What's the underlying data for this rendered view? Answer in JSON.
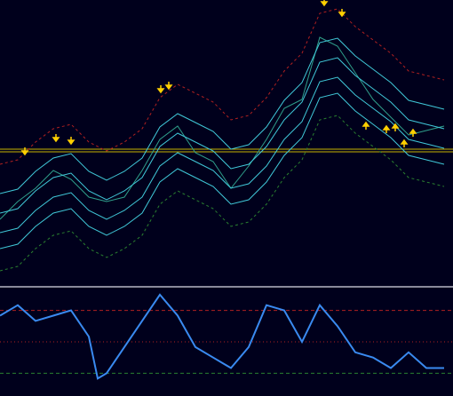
{
  "chart_data": [
    {
      "type": "line",
      "x": [
        0,
        20,
        40,
        60,
        80,
        100,
        120,
        140,
        160,
        180,
        200,
        220,
        240,
        260,
        280,
        300,
        320,
        340,
        360,
        380,
        400,
        420,
        440,
        460,
        480,
        500
      ],
      "xlim": [
        0,
        510
      ],
      "ylim": [
        0,
        322
      ],
      "hlines": [
        {
          "value": 154,
          "color": "#c8b400"
        },
        {
          "value": 151,
          "color": "#c8b400"
        }
      ],
      "series": [
        {
          "color": "#2fa08c",
          "dash": false,
          "width": 1,
          "values": [
            75,
            95,
            110,
            130,
            120,
            100,
            95,
            100,
            130,
            165,
            180,
            150,
            140,
            110,
            135,
            165,
            200,
            210,
            280,
            270,
            240,
            210,
            190,
            170,
            175,
            180
          ]
        },
        {
          "color": "#b02020",
          "dash": true,
          "width": 1,
          "values": [
            137,
            142,
            162,
            177,
            182,
            162,
            152,
            162,
            177,
            212,
            227,
            217,
            207,
            187,
            192,
            212,
            242,
            262,
            307,
            312,
            292,
            277,
            262,
            242,
            237,
            232
          ]
        },
        {
          "color": "#40c8d8",
          "dash": false,
          "width": 1,
          "values": [
            104,
            109,
            129,
            144,
            149,
            129,
            119,
            129,
            144,
            179,
            194,
            184,
            174,
            154,
            159,
            179,
            209,
            229,
            274,
            279,
            259,
            244,
            229,
            209,
            204,
            199
          ]
        },
        {
          "color": "#40c8d8",
          "dash": false,
          "width": 1,
          "values": [
            82,
            87,
            107,
            122,
            127,
            107,
            97,
            107,
            122,
            157,
            172,
            162,
            152,
            132,
            137,
            157,
            187,
            207,
            252,
            257,
            237,
            222,
            207,
            187,
            182,
            177
          ]
        },
        {
          "color": "#40c8d8",
          "dash": false,
          "width": 1,
          "values": [
            60,
            65,
            85,
            100,
            105,
            85,
            75,
            85,
            100,
            135,
            150,
            140,
            130,
            110,
            115,
            135,
            165,
            185,
            230,
            235,
            215,
            200,
            185,
            165,
            160,
            155
          ]
        },
        {
          "color": "#40c8d8",
          "dash": false,
          "width": 1,
          "values": [
            42,
            47,
            67,
            82,
            87,
            67,
            57,
            67,
            82,
            117,
            132,
            122,
            112,
            92,
            97,
            117,
            147,
            167,
            212,
            217,
            197,
            182,
            167,
            147,
            142,
            137
          ]
        },
        {
          "color": "#2a8030",
          "dash": true,
          "width": 1,
          "values": [
            17,
            22,
            42,
            57,
            62,
            42,
            32,
            42,
            57,
            92,
            107,
            97,
            87,
            67,
            72,
            92,
            122,
            142,
            187,
            192,
            172,
            157,
            142,
            122,
            117,
            112
          ]
        }
      ],
      "up_arrows": {
        "color": "#ffd000",
        "x": [
          412,
          435,
          445,
          455,
          465
        ],
        "y": [
          180,
          176,
          178,
          160,
          172
        ]
      },
      "down_arrows": {
        "color": "#ffd000",
        "x": [
          28,
          63,
          80,
          181,
          190,
          365,
          385
        ],
        "y": [
          152,
          167,
          164,
          222,
          226,
          320,
          308
        ]
      }
    },
    {
      "type": "line",
      "x": [
        0,
        20,
        40,
        60,
        80,
        100,
        110,
        120,
        140,
        160,
        180,
        200,
        220,
        240,
        260,
        280,
        300,
        320,
        340,
        360,
        380,
        400,
        420,
        440,
        460,
        480,
        500
      ],
      "xlim": [
        0,
        510
      ],
      "ylim": [
        0,
        100
      ],
      "hlines": [
        {
          "value": 80,
          "color": "#b02020",
          "dash": "4,3"
        },
        {
          "value": 50,
          "color": "#b02020",
          "dash": "1,3"
        },
        {
          "value": 20,
          "color": "#2a8030",
          "dash": "4,3"
        }
      ],
      "series": [
        {
          "color": "#3a8af0",
          "dash": false,
          "width": 2,
          "values": [
            75,
            85,
            70,
            75,
            80,
            55,
            15,
            20,
            45,
            70,
            95,
            75,
            45,
            35,
            25,
            45,
            85,
            80,
            50,
            85,
            65,
            40,
            35,
            25,
            40,
            25,
            25
          ]
        }
      ]
    }
  ]
}
